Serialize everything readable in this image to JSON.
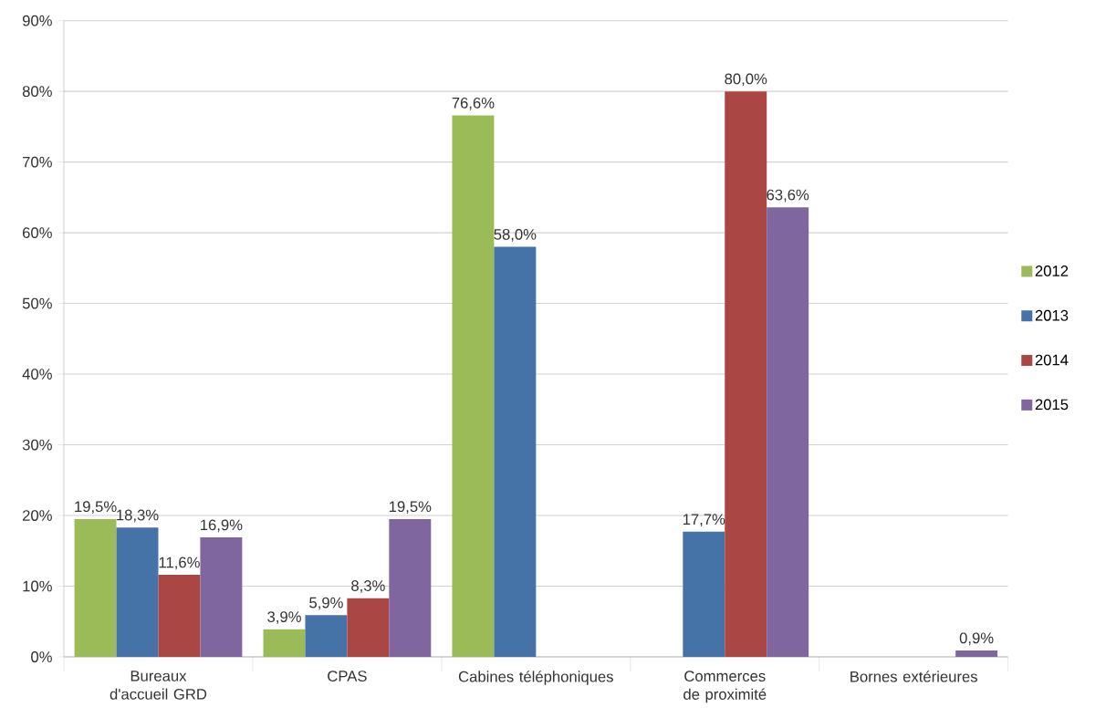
{
  "chart_data": {
    "type": "bar",
    "categories": [
      "Bureaux d'accueil GRD",
      "CPAS",
      "Cabines téléphoniques",
      "Commerces de proximité",
      "Bornes extérieures"
    ],
    "series": [
      {
        "name": "2012",
        "color": "#9bbb59",
        "values": [
          19.5,
          3.9,
          76.6,
          null,
          null
        ],
        "value_labels": [
          "19,5%",
          "3,9%",
          "76,6%",
          null,
          null
        ]
      },
      {
        "name": "2013",
        "color": "#4572a7",
        "values": [
          18.3,
          5.9,
          58.0,
          17.7,
          null
        ],
        "value_labels": [
          "18,3%",
          "5,9%",
          "58,0%",
          "17,7%",
          null
        ]
      },
      {
        "name": "2014",
        "color": "#aa4643",
        "values": [
          11.6,
          8.3,
          null,
          80.0,
          null
        ],
        "value_labels": [
          "11,6%",
          "8,3%",
          null,
          "80,0%",
          null
        ]
      },
      {
        "name": "2015",
        "color": "#80669f",
        "values": [
          16.9,
          19.5,
          null,
          63.6,
          0.9
        ],
        "value_labels": [
          "16,9%",
          "19,5%",
          null,
          "63,6%",
          "0,9%"
        ]
      }
    ],
    "ylim": [
      0,
      90
    ],
    "yticks": [
      {
        "value": 0,
        "label": "0%"
      },
      {
        "value": 10,
        "label": "10%"
      },
      {
        "value": 20,
        "label": "20%"
      },
      {
        "value": 30,
        "label": "30%"
      },
      {
        "value": 40,
        "label": "40%"
      },
      {
        "value": 50,
        "label": "50%"
      },
      {
        "value": 60,
        "label": "60%"
      },
      {
        "value": 70,
        "label": "70%"
      },
      {
        "value": 80,
        "label": "80%"
      },
      {
        "value": 90,
        "label": "90%"
      }
    ],
    "grid": "y",
    "legend": "right"
  }
}
